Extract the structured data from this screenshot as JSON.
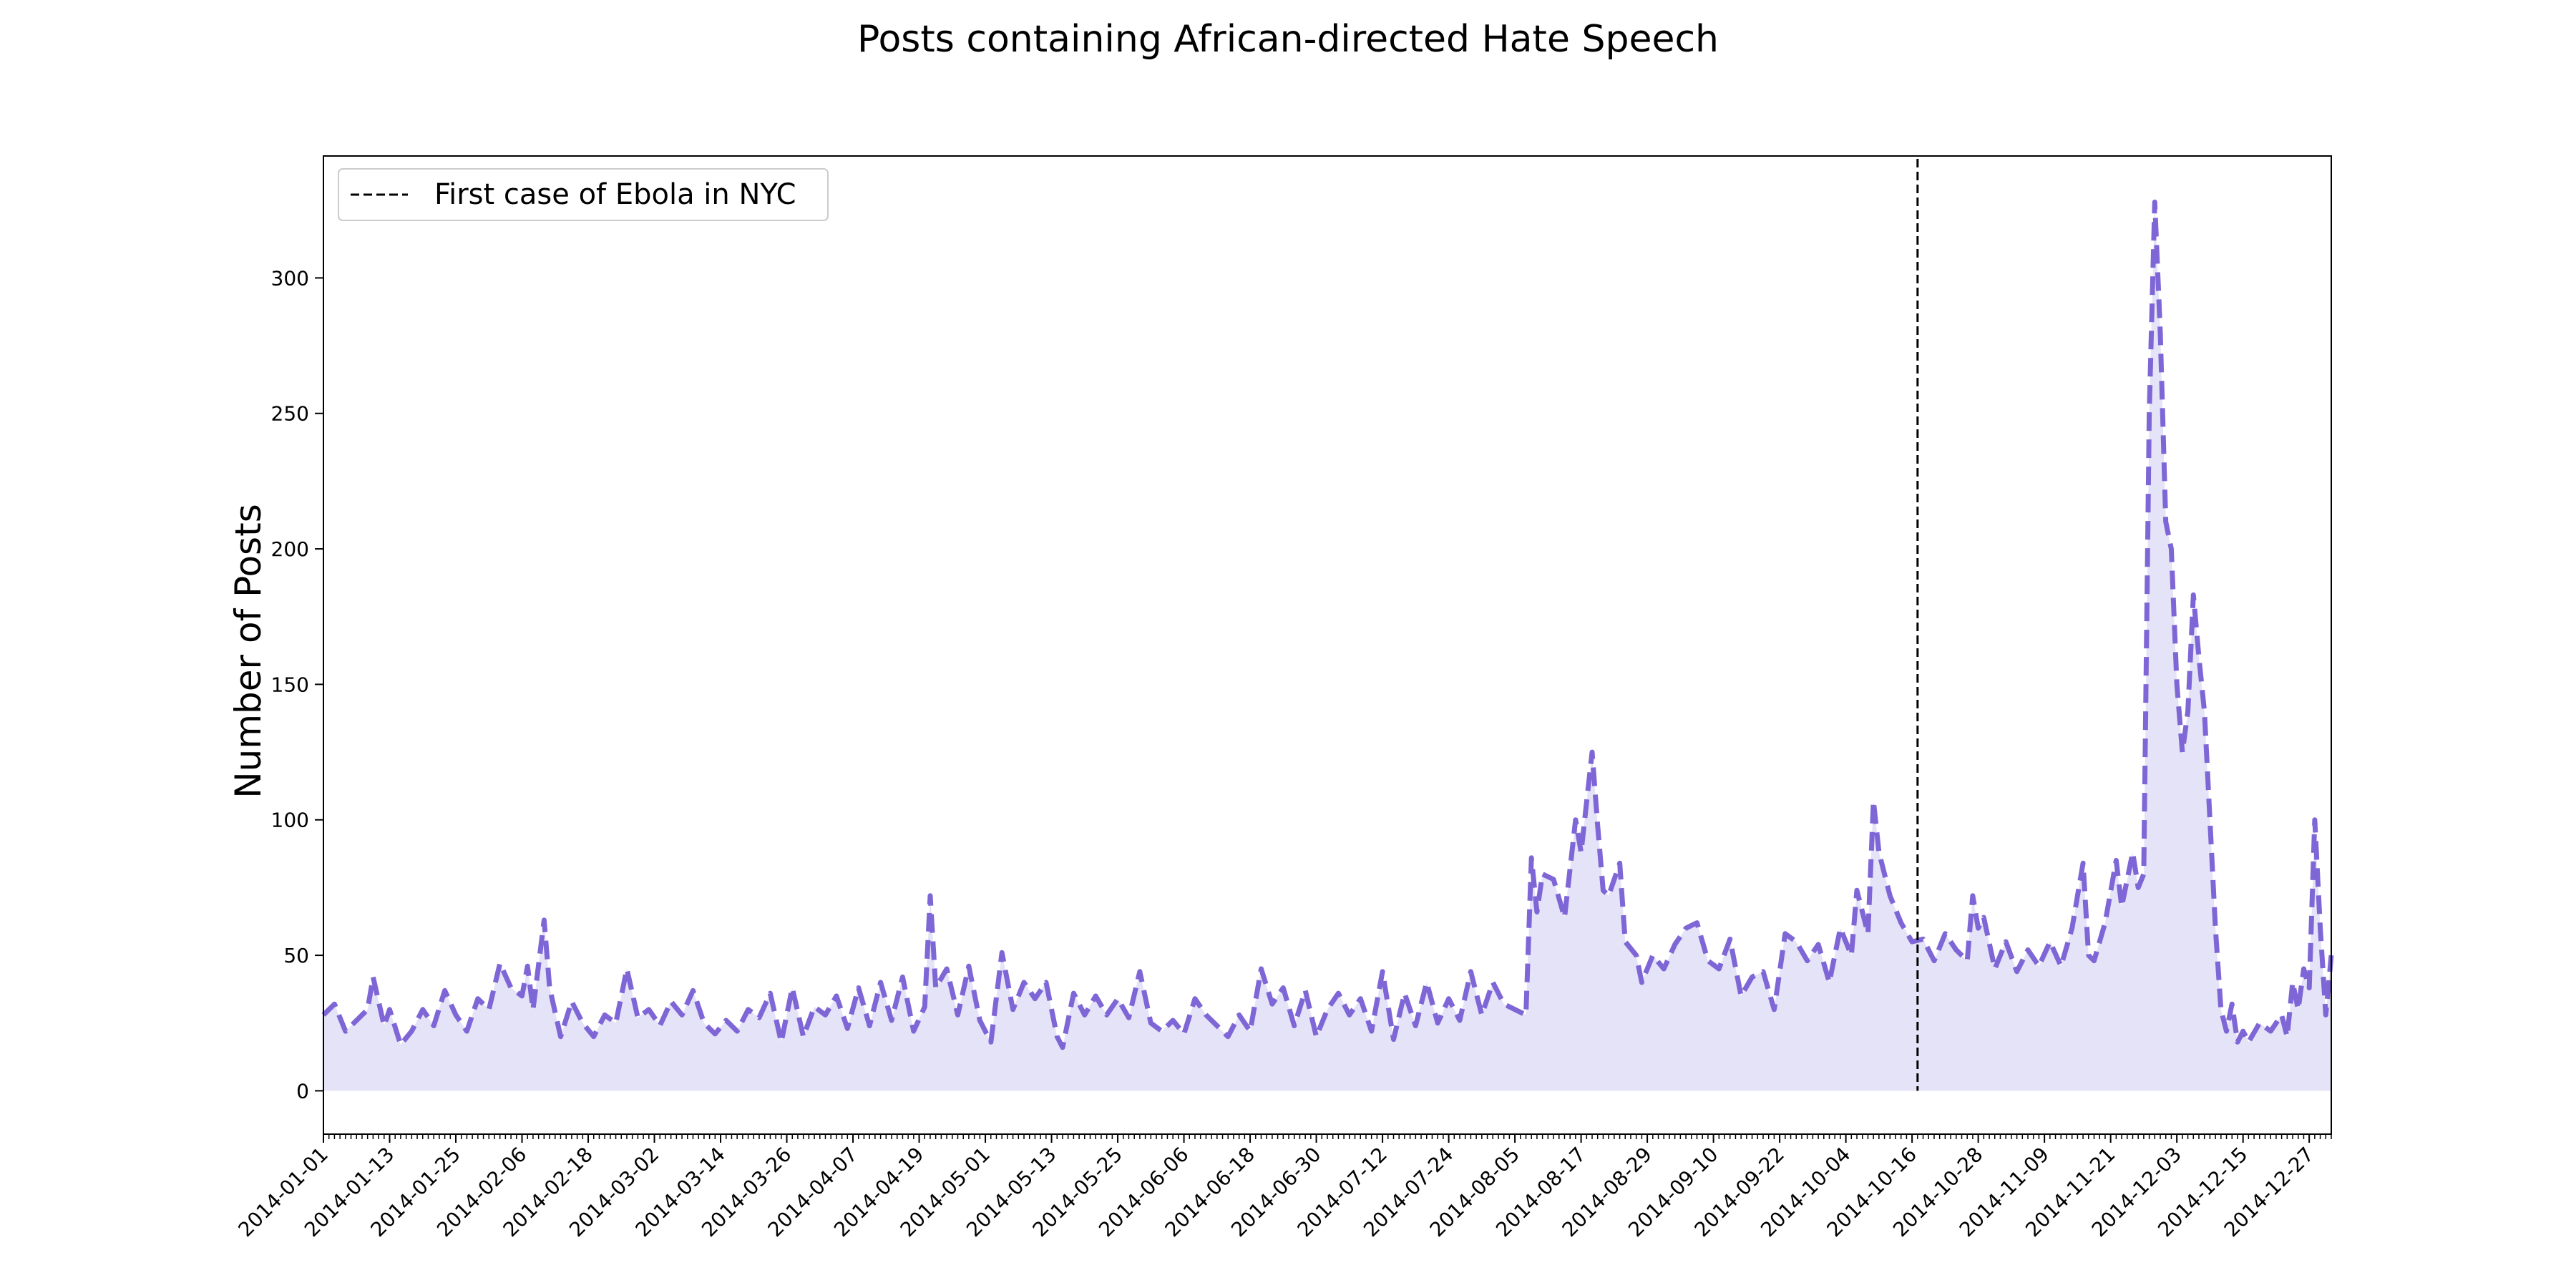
{
  "chart_data": {
    "type": "area",
    "title": "Posts containing African-directed Hate Speech",
    "xlabel": "",
    "ylabel": "Number of Posts",
    "x_start": "2014-01-01",
    "x_end": "2014-12-31",
    "ylim": [
      -16,
      345
    ],
    "y_ticks": [
      0,
      50,
      100,
      150,
      200,
      250,
      300
    ],
    "x_ticks": [
      "2014-01-01",
      "2014-01-13",
      "2014-01-25",
      "2014-02-06",
      "2014-02-18",
      "2014-03-02",
      "2014-03-14",
      "2014-03-26",
      "2014-04-07",
      "2014-04-19",
      "2014-05-01",
      "2014-05-13",
      "2014-05-25",
      "2014-06-06",
      "2014-06-18",
      "2014-06-30",
      "2014-07-12",
      "2014-07-24",
      "2014-08-05",
      "2014-08-17",
      "2014-08-29",
      "2014-09-10",
      "2014-09-22",
      "2014-10-04",
      "2014-10-16",
      "2014-10-28",
      "2014-11-09",
      "2014-11-21",
      "2014-12-03",
      "2014-12-15",
      "2014-12-27"
    ],
    "grid": false,
    "legend_position": "top-left",
    "series": [
      {
        "line_color": "#7f66d6",
        "fill_color": "#e4e3f7",
        "points": [
          [
            "2014-01-01",
            28
          ],
          [
            "2014-01-03",
            32
          ],
          [
            "2014-01-05",
            22
          ],
          [
            "2014-01-07",
            26
          ],
          [
            "2014-01-09",
            30
          ],
          [
            "2014-01-10",
            42
          ],
          [
            "2014-01-12",
            24
          ],
          [
            "2014-01-13",
            30
          ],
          [
            "2014-01-15",
            17
          ],
          [
            "2014-01-17",
            22
          ],
          [
            "2014-01-19",
            30
          ],
          [
            "2014-01-21",
            24
          ],
          [
            "2014-01-23",
            37
          ],
          [
            "2014-01-25",
            28
          ],
          [
            "2014-01-27",
            22
          ],
          [
            "2014-01-29",
            34
          ],
          [
            "2014-01-31",
            30
          ],
          [
            "2014-02-02",
            47
          ],
          [
            "2014-02-04",
            38
          ],
          [
            "2014-02-06",
            35
          ],
          [
            "2014-02-07",
            46
          ],
          [
            "2014-02-08",
            30
          ],
          [
            "2014-02-10",
            63
          ],
          [
            "2014-02-11",
            38
          ],
          [
            "2014-02-13",
            20
          ],
          [
            "2014-02-15",
            33
          ],
          [
            "2014-02-17",
            25
          ],
          [
            "2014-02-19",
            20
          ],
          [
            "2014-02-21",
            28
          ],
          [
            "2014-02-23",
            25
          ],
          [
            "2014-02-25",
            45
          ],
          [
            "2014-02-27",
            27
          ],
          [
            "2014-03-01",
            30
          ],
          [
            "2014-03-03",
            24
          ],
          [
            "2014-03-05",
            33
          ],
          [
            "2014-03-07",
            28
          ],
          [
            "2014-03-09",
            37
          ],
          [
            "2014-03-11",
            25
          ],
          [
            "2014-03-13",
            21
          ],
          [
            "2014-03-15",
            26
          ],
          [
            "2014-03-17",
            22
          ],
          [
            "2014-03-19",
            30
          ],
          [
            "2014-03-21",
            27
          ],
          [
            "2014-03-23",
            36
          ],
          [
            "2014-03-25",
            18
          ],
          [
            "2014-03-27",
            38
          ],
          [
            "2014-03-29",
            20
          ],
          [
            "2014-03-31",
            31
          ],
          [
            "2014-04-02",
            28
          ],
          [
            "2014-04-04",
            35
          ],
          [
            "2014-04-06",
            23
          ],
          [
            "2014-04-08",
            38
          ],
          [
            "2014-04-10",
            24
          ],
          [
            "2014-04-12",
            40
          ],
          [
            "2014-04-14",
            26
          ],
          [
            "2014-04-16",
            42
          ],
          [
            "2014-04-18",
            22
          ],
          [
            "2014-04-20",
            31
          ],
          [
            "2014-04-21",
            72
          ],
          [
            "2014-04-22",
            38
          ],
          [
            "2014-04-24",
            45
          ],
          [
            "2014-04-26",
            28
          ],
          [
            "2014-04-28",
            46
          ],
          [
            "2014-04-30",
            26
          ],
          [
            "2014-05-02",
            18
          ],
          [
            "2014-05-04",
            51
          ],
          [
            "2014-05-06",
            30
          ],
          [
            "2014-05-08",
            40
          ],
          [
            "2014-05-10",
            34
          ],
          [
            "2014-05-12",
            40
          ],
          [
            "2014-05-14",
            20
          ],
          [
            "2014-05-15",
            16
          ],
          [
            "2014-05-17",
            36
          ],
          [
            "2014-05-19",
            28
          ],
          [
            "2014-05-21",
            35
          ],
          [
            "2014-05-23",
            28
          ],
          [
            "2014-05-25",
            34
          ],
          [
            "2014-05-27",
            27
          ],
          [
            "2014-05-29",
            44
          ],
          [
            "2014-05-31",
            25
          ],
          [
            "2014-06-02",
            22
          ],
          [
            "2014-06-04",
            26
          ],
          [
            "2014-06-06",
            21
          ],
          [
            "2014-06-08",
            34
          ],
          [
            "2014-06-10",
            28
          ],
          [
            "2014-06-12",
            24
          ],
          [
            "2014-06-14",
            20
          ],
          [
            "2014-06-16",
            28
          ],
          [
            "2014-06-18",
            22
          ],
          [
            "2014-06-20",
            45
          ],
          [
            "2014-06-22",
            32
          ],
          [
            "2014-06-24",
            38
          ],
          [
            "2014-06-26",
            24
          ],
          [
            "2014-06-28",
            37
          ],
          [
            "2014-06-30",
            20
          ],
          [
            "2014-07-02",
            30
          ],
          [
            "2014-07-04",
            36
          ],
          [
            "2014-07-06",
            28
          ],
          [
            "2014-07-08",
            34
          ],
          [
            "2014-07-10",
            22
          ],
          [
            "2014-07-12",
            44
          ],
          [
            "2014-07-14",
            19
          ],
          [
            "2014-07-16",
            36
          ],
          [
            "2014-07-18",
            24
          ],
          [
            "2014-07-20",
            40
          ],
          [
            "2014-07-22",
            25
          ],
          [
            "2014-07-24",
            34
          ],
          [
            "2014-07-26",
            26
          ],
          [
            "2014-07-28",
            44
          ],
          [
            "2014-07-30",
            28
          ],
          [
            "2014-08-01",
            40
          ],
          [
            "2014-08-03",
            32
          ],
          [
            "2014-08-05",
            30
          ],
          [
            "2014-08-07",
            28
          ],
          [
            "2014-08-08",
            86
          ],
          [
            "2014-08-09",
            66
          ],
          [
            "2014-08-10",
            80
          ],
          [
            "2014-08-12",
            78
          ],
          [
            "2014-08-14",
            64
          ],
          [
            "2014-08-16",
            100
          ],
          [
            "2014-08-17",
            88
          ],
          [
            "2014-08-19",
            125
          ],
          [
            "2014-08-20",
            98
          ],
          [
            "2014-08-21",
            74
          ],
          [
            "2014-08-22",
            72
          ],
          [
            "2014-08-24",
            84
          ],
          [
            "2014-08-25",
            55
          ],
          [
            "2014-08-27",
            50
          ],
          [
            "2014-08-28",
            40
          ],
          [
            "2014-08-30",
            50
          ],
          [
            "2014-09-01",
            45
          ],
          [
            "2014-09-03",
            54
          ],
          [
            "2014-09-05",
            60
          ],
          [
            "2014-09-07",
            62
          ],
          [
            "2014-09-09",
            48
          ],
          [
            "2014-09-11",
            45
          ],
          [
            "2014-09-13",
            56
          ],
          [
            "2014-09-15",
            35
          ],
          [
            "2014-09-17",
            42
          ],
          [
            "2014-09-19",
            44
          ],
          [
            "2014-09-21",
            30
          ],
          [
            "2014-09-23",
            58
          ],
          [
            "2014-09-25",
            55
          ],
          [
            "2014-09-27",
            48
          ],
          [
            "2014-09-29",
            54
          ],
          [
            "2014-10-01",
            40
          ],
          [
            "2014-10-03",
            60
          ],
          [
            "2014-10-05",
            50
          ],
          [
            "2014-10-06",
            74
          ],
          [
            "2014-10-08",
            58
          ],
          [
            "2014-10-09",
            107
          ],
          [
            "2014-10-10",
            88
          ],
          [
            "2014-10-12",
            72
          ],
          [
            "2014-10-14",
            62
          ],
          [
            "2014-10-16",
            55
          ],
          [
            "2014-10-18",
            56
          ],
          [
            "2014-10-20",
            48
          ],
          [
            "2014-10-22",
            58
          ],
          [
            "2014-10-24",
            52
          ],
          [
            "2014-10-26",
            48
          ],
          [
            "2014-10-27",
            72
          ],
          [
            "2014-10-28",
            60
          ],
          [
            "2014-10-29",
            64
          ],
          [
            "2014-10-31",
            45
          ],
          [
            "2014-11-02",
            55
          ],
          [
            "2014-11-04",
            44
          ],
          [
            "2014-11-06",
            52
          ],
          [
            "2014-11-08",
            46
          ],
          [
            "2014-11-10",
            55
          ],
          [
            "2014-11-12",
            46
          ],
          [
            "2014-11-14",
            60
          ],
          [
            "2014-11-16",
            84
          ],
          [
            "2014-11-17",
            50
          ],
          [
            "2014-11-18",
            48
          ],
          [
            "2014-11-20",
            62
          ],
          [
            "2014-11-22",
            85
          ],
          [
            "2014-11-23",
            68
          ],
          [
            "2014-11-25",
            88
          ],
          [
            "2014-11-26",
            75
          ],
          [
            "2014-11-27",
            80
          ],
          [
            "2014-11-28",
            250
          ],
          [
            "2014-11-29",
            328
          ],
          [
            "2014-11-30",
            280
          ],
          [
            "2014-12-01",
            210
          ],
          [
            "2014-12-02",
            200
          ],
          [
            "2014-12-03",
            150
          ],
          [
            "2014-12-04",
            125
          ],
          [
            "2014-12-05",
            140
          ],
          [
            "2014-12-06",
            183
          ],
          [
            "2014-12-07",
            160
          ],
          [
            "2014-12-08",
            140
          ],
          [
            "2014-12-09",
            100
          ],
          [
            "2014-12-10",
            60
          ],
          [
            "2014-12-11",
            30
          ],
          [
            "2014-12-12",
            22
          ],
          [
            "2014-12-13",
            32
          ],
          [
            "2014-12-14",
            18
          ],
          [
            "2014-12-15",
            22
          ],
          [
            "2014-12-16",
            18
          ],
          [
            "2014-12-18",
            25
          ],
          [
            "2014-12-20",
            22
          ],
          [
            "2014-12-22",
            28
          ],
          [
            "2014-12-23",
            20
          ],
          [
            "2014-12-24",
            40
          ],
          [
            "2014-12-25",
            30
          ],
          [
            "2014-12-26",
            45
          ],
          [
            "2014-12-27",
            38
          ],
          [
            "2014-12-28",
            100
          ],
          [
            "2014-12-29",
            60
          ],
          [
            "2014-12-30",
            28
          ],
          [
            "2014-12-31",
            50
          ]
        ]
      }
    ],
    "reference_lines": [
      {
        "x": "2014-10-17",
        "label": "First case of Ebola in NYC",
        "color": "#000000",
        "style": "dashed"
      }
    ]
  }
}
